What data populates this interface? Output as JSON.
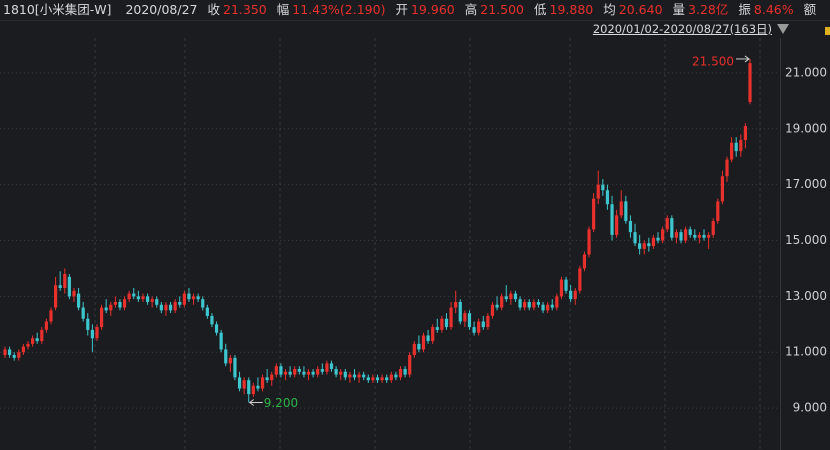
{
  "header": {
    "symbol": "1810[小米集团-W]",
    "date": "2020/08/27",
    "quote": [
      {
        "label": "收",
        "value": "21.350"
      },
      {
        "label": "幅",
        "value": "11.43%(2.190)"
      },
      {
        "label": "开",
        "value": "19.960"
      },
      {
        "label": "高",
        "value": "21.500"
      },
      {
        "label": "低",
        "value": "19.880"
      },
      {
        "label": "均",
        "value": "20.640"
      },
      {
        "label": "量",
        "value": "3.28亿"
      },
      {
        "label": "振",
        "value": "8.46%"
      },
      {
        "label": "额"
      }
    ],
    "range": "2020/01/02-2020/08/27(163日)"
  },
  "chart_data": {
    "type": "candlestick",
    "up_color": "#e8302c",
    "down_color": "#3ec6ce",
    "grid": true,
    "ylim": [
      7.5,
      22.25
    ],
    "yticks": [
      {
        "value": 9,
        "label": "9.000"
      },
      {
        "value": 11,
        "label": "11.000"
      },
      {
        "value": 13,
        "label": "13.000"
      },
      {
        "value": 15,
        "label": "15.000"
      },
      {
        "value": 17,
        "label": "17.000"
      },
      {
        "value": 19,
        "label": "19.000"
      },
      {
        "value": 21,
        "label": "21.000"
      }
    ],
    "annotations": [
      {
        "value": 21.5,
        "label": "21.500",
        "color": "#e8302c"
      },
      {
        "value": 9.2,
        "label": "9.200",
        "color": "#2db54a"
      }
    ],
    "ohlc": [
      [
        10.9,
        11.2,
        10.8,
        11.1
      ],
      [
        11.1,
        11.2,
        10.8,
        10.9
      ],
      [
        10.9,
        11.0,
        10.7,
        10.8
      ],
      [
        10.8,
        11.1,
        10.7,
        11.0
      ],
      [
        11.0,
        11.3,
        10.9,
        11.2
      ],
      [
        11.2,
        11.4,
        11.1,
        11.3
      ],
      [
        11.3,
        11.6,
        11.2,
        11.5
      ],
      [
        11.5,
        11.7,
        11.3,
        11.4
      ],
      [
        11.4,
        11.9,
        11.3,
        11.8
      ],
      [
        11.8,
        12.2,
        11.7,
        12.1
      ],
      [
        12.1,
        12.6,
        12.0,
        12.5
      ],
      [
        12.6,
        13.7,
        12.5,
        13.4
      ],
      [
        13.4,
        13.9,
        13.2,
        13.3
      ],
      [
        13.3,
        14.0,
        13.1,
        13.8
      ],
      [
        13.7,
        13.8,
        12.9,
        13.0
      ],
      [
        13.0,
        13.3,
        12.8,
        13.2
      ],
      [
        13.1,
        13.3,
        12.5,
        12.6
      ],
      [
        12.6,
        12.8,
        12.1,
        12.2
      ],
      [
        12.2,
        12.4,
        11.6,
        11.8
      ],
      [
        11.8,
        12.0,
        11.0,
        11.5
      ],
      [
        11.5,
        12.0,
        11.4,
        11.9
      ],
      [
        11.9,
        12.7,
        11.8,
        12.6
      ],
      [
        12.6,
        12.9,
        12.4,
        12.5
      ],
      [
        12.5,
        12.8,
        12.3,
        12.7
      ],
      [
        12.7,
        13.0,
        12.6,
        12.8
      ],
      [
        12.8,
        12.9,
        12.5,
        12.6
      ],
      [
        12.6,
        13.0,
        12.5,
        12.9
      ],
      [
        12.9,
        13.2,
        12.8,
        13.1
      ],
      [
        13.1,
        13.3,
        12.9,
        13.0
      ],
      [
        13.0,
        13.2,
        12.8,
        12.9
      ],
      [
        12.9,
        13.1,
        12.8,
        13.0
      ],
      [
        13.0,
        13.1,
        12.7,
        12.8
      ],
      [
        12.8,
        13.0,
        12.6,
        12.9
      ],
      [
        12.9,
        13.0,
        12.6,
        12.7
      ],
      [
        12.7,
        12.8,
        12.4,
        12.5
      ],
      [
        12.5,
        12.8,
        12.3,
        12.7
      ],
      [
        12.7,
        12.8,
        12.4,
        12.5
      ],
      [
        12.5,
        12.9,
        12.4,
        12.8
      ],
      [
        12.8,
        13.0,
        12.6,
        12.7
      ],
      [
        12.7,
        13.2,
        12.6,
        13.1
      ],
      [
        13.1,
        13.3,
        12.8,
        12.9
      ],
      [
        12.9,
        13.1,
        12.7,
        13.0
      ],
      [
        13.0,
        13.1,
        12.8,
        12.9
      ],
      [
        12.9,
        13.0,
        12.5,
        12.6
      ],
      [
        12.6,
        12.7,
        12.2,
        12.3
      ],
      [
        12.3,
        12.4,
        11.9,
        12.0
      ],
      [
        12.0,
        12.1,
        11.6,
        11.7
      ],
      [
        11.7,
        11.8,
        11.0,
        11.1
      ],
      [
        11.1,
        11.3,
        10.5,
        10.6
      ],
      [
        10.6,
        10.9,
        10.3,
        10.8
      ],
      [
        10.8,
        10.9,
        10.0,
        10.1
      ],
      [
        10.1,
        10.3,
        9.6,
        9.7
      ],
      [
        9.7,
        10.1,
        9.5,
        10.0
      ],
      [
        10.0,
        10.1,
        9.2,
        9.5
      ],
      [
        9.5,
        9.9,
        9.4,
        9.8
      ],
      [
        9.8,
        10.1,
        9.6,
        9.7
      ],
      [
        9.7,
        10.2,
        9.6,
        10.1
      ],
      [
        10.1,
        10.4,
        9.9,
        10.0
      ],
      [
        10.0,
        10.3,
        9.8,
        10.2
      ],
      [
        10.2,
        10.6,
        10.1,
        10.5
      ],
      [
        10.5,
        10.6,
        10.1,
        10.2
      ],
      [
        10.2,
        10.4,
        10.0,
        10.3
      ],
      [
        10.3,
        10.5,
        10.1,
        10.2
      ],
      [
        10.2,
        10.5,
        10.1,
        10.4
      ],
      [
        10.4,
        10.5,
        10.2,
        10.3
      ],
      [
        10.3,
        10.5,
        10.1,
        10.2
      ],
      [
        10.2,
        10.4,
        10.0,
        10.3
      ],
      [
        10.3,
        10.4,
        10.1,
        10.2
      ],
      [
        10.2,
        10.5,
        10.1,
        10.4
      ],
      [
        10.4,
        10.6,
        10.2,
        10.3
      ],
      [
        10.3,
        10.7,
        10.2,
        10.6
      ],
      [
        10.6,
        10.7,
        10.3,
        10.4
      ],
      [
        10.4,
        10.5,
        10.1,
        10.2
      ],
      [
        10.2,
        10.4,
        10.0,
        10.3
      ],
      [
        10.3,
        10.4,
        10.0,
        10.1
      ],
      [
        10.1,
        10.3,
        9.9,
        10.2
      ],
      [
        10.2,
        10.4,
        10.0,
        10.1
      ],
      [
        10.1,
        10.3,
        9.9,
        10.2
      ],
      [
        10.2,
        10.3,
        10.0,
        10.1
      ],
      [
        10.1,
        10.2,
        9.9,
        10.0
      ],
      [
        10.0,
        10.2,
        9.9,
        10.1
      ],
      [
        10.1,
        10.2,
        9.9,
        10.0
      ],
      [
        10.0,
        10.2,
        9.9,
        10.1
      ],
      [
        10.1,
        10.2,
        9.9,
        10.0
      ],
      [
        10.0,
        10.3,
        9.9,
        10.2
      ],
      [
        10.2,
        10.3,
        10.0,
        10.1
      ],
      [
        10.1,
        10.5,
        10.0,
        10.4
      ],
      [
        10.4,
        10.5,
        10.1,
        10.2
      ],
      [
        10.2,
        11.0,
        10.1,
        10.9
      ],
      [
        10.9,
        11.4,
        10.8,
        11.3
      ],
      [
        11.3,
        11.6,
        11.0,
        11.1
      ],
      [
        11.1,
        11.7,
        11.0,
        11.6
      ],
      [
        11.6,
        11.8,
        11.3,
        11.4
      ],
      [
        11.4,
        12.0,
        11.3,
        11.9
      ],
      [
        11.9,
        12.2,
        11.7,
        11.8
      ],
      [
        11.8,
        12.3,
        11.7,
        12.2
      ],
      [
        12.2,
        12.4,
        11.8,
        11.9
      ],
      [
        11.9,
        12.8,
        11.8,
        12.6
      ],
      [
        12.6,
        13.2,
        12.4,
        12.8
      ],
      [
        12.8,
        12.9,
        12.0,
        12.1
      ],
      [
        12.1,
        12.5,
        11.9,
        12.4
      ],
      [
        12.4,
        12.5,
        11.8,
        11.9
      ],
      [
        11.9,
        12.1,
        11.6,
        11.7
      ],
      [
        11.7,
        12.2,
        11.6,
        12.1
      ],
      [
        12.1,
        12.3,
        11.8,
        11.9
      ],
      [
        11.9,
        12.4,
        11.8,
        12.3
      ],
      [
        12.3,
        12.8,
        12.2,
        12.7
      ],
      [
        12.7,
        13.0,
        12.5,
        12.6
      ],
      [
        12.6,
        13.1,
        12.5,
        13.0
      ],
      [
        13.0,
        13.4,
        12.8,
        12.9
      ],
      [
        12.9,
        13.2,
        12.7,
        13.1
      ],
      [
        13.1,
        13.2,
        12.8,
        12.9
      ],
      [
        12.9,
        13.0,
        12.5,
        12.6
      ],
      [
        12.6,
        12.9,
        12.5,
        12.8
      ],
      [
        12.8,
        12.9,
        12.5,
        12.6
      ],
      [
        12.6,
        12.9,
        12.5,
        12.8
      ],
      [
        12.8,
        12.9,
        12.6,
        12.7
      ],
      [
        12.7,
        12.8,
        12.4,
        12.5
      ],
      [
        12.5,
        12.8,
        12.4,
        12.7
      ],
      [
        12.7,
        12.9,
        12.5,
        12.6
      ],
      [
        12.6,
        13.1,
        12.5,
        13.0
      ],
      [
        13.0,
        13.7,
        12.9,
        13.6
      ],
      [
        13.6,
        13.7,
        13.1,
        13.2
      ],
      [
        13.2,
        13.4,
        12.8,
        12.9
      ],
      [
        12.9,
        13.3,
        12.7,
        13.2
      ],
      [
        13.2,
        14.1,
        13.1,
        14.0
      ],
      [
        14.0,
        14.6,
        13.9,
        14.5
      ],
      [
        14.5,
        15.5,
        14.4,
        15.4
      ],
      [
        15.4,
        16.7,
        15.3,
        16.5
      ],
      [
        16.5,
        17.5,
        16.3,
        17.0
      ],
      [
        17.0,
        17.2,
        16.6,
        16.8
      ],
      [
        16.8,
        17.0,
        16.1,
        16.3
      ],
      [
        16.3,
        16.6,
        15.0,
        15.2
      ],
      [
        15.2,
        16.1,
        15.1,
        15.9
      ],
      [
        15.9,
        16.8,
        15.8,
        16.4
      ],
      [
        16.4,
        16.6,
        15.6,
        15.7
      ],
      [
        15.7,
        15.9,
        15.1,
        15.3
      ],
      [
        15.3,
        15.6,
        14.8,
        14.9
      ],
      [
        14.9,
        15.2,
        14.5,
        14.7
      ],
      [
        14.7,
        15.0,
        14.5,
        14.9
      ],
      [
        14.9,
        15.1,
        14.6,
        14.8
      ],
      [
        14.8,
        15.2,
        14.7,
        15.1
      ],
      [
        15.1,
        15.3,
        14.9,
        15.0
      ],
      [
        15.0,
        15.5,
        14.9,
        15.4
      ],
      [
        15.4,
        15.9,
        15.3,
        15.8
      ],
      [
        15.8,
        15.9,
        15.0,
        15.1
      ],
      [
        15.1,
        15.4,
        14.9,
        15.3
      ],
      [
        15.3,
        15.4,
        14.9,
        15.0
      ],
      [
        15.0,
        15.5,
        14.9,
        15.4
      ],
      [
        15.4,
        15.5,
        15.1,
        15.2
      ],
      [
        15.2,
        15.4,
        15.0,
        15.1
      ],
      [
        15.1,
        15.3,
        14.9,
        15.2
      ],
      [
        15.2,
        15.4,
        15.0,
        15.1
      ],
      [
        15.1,
        15.3,
        14.7,
        15.2
      ],
      [
        15.2,
        15.8,
        15.1,
        15.7
      ],
      [
        15.7,
        16.5,
        15.6,
        16.4
      ],
      [
        16.4,
        17.5,
        16.3,
        17.3
      ],
      [
        17.3,
        18.0,
        17.1,
        17.9
      ],
      [
        17.9,
        18.7,
        17.8,
        18.5
      ],
      [
        18.5,
        18.7,
        18.0,
        18.2
      ],
      [
        18.2,
        18.8,
        18.0,
        18.6
      ],
      [
        18.6,
        19.2,
        18.3,
        19.1
      ],
      [
        19.96,
        21.5,
        19.88,
        21.35
      ]
    ]
  }
}
